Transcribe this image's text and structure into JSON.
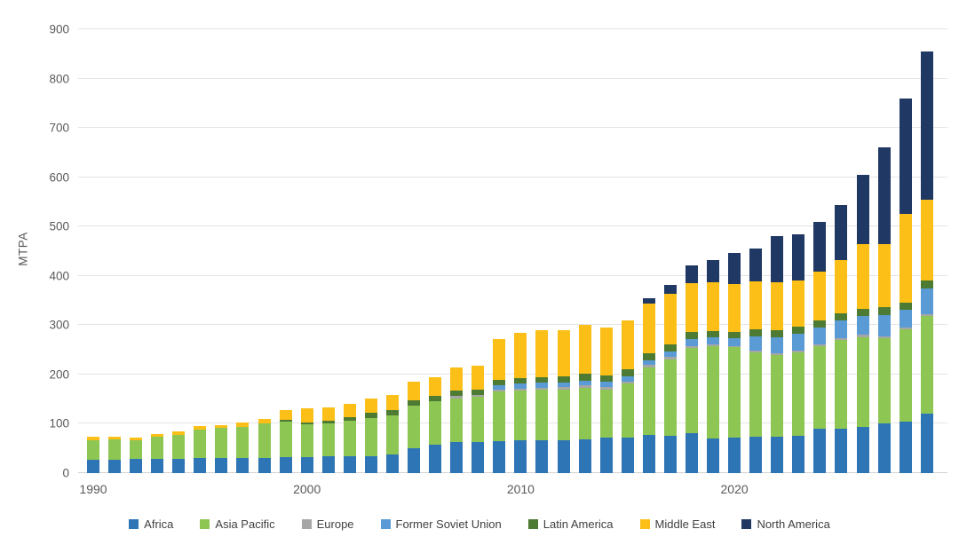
{
  "chart": {
    "background": "#ffffff",
    "grid_color": "#e4e4e4",
    "axis_line_color": "#d2d2d2",
    "tick_label_color": "#595959",
    "legend_text_color": "#404040"
  },
  "chart_data": {
    "type": "bar",
    "stacked": true,
    "title": "",
    "xlabel": "",
    "ylabel": "MTPA",
    "ylim": [
      0,
      900
    ],
    "y_ticks": [
      0,
      100,
      200,
      300,
      400,
      500,
      600,
      700,
      800,
      900
    ],
    "grid": true,
    "legend_position": "bottom",
    "x": [
      1990,
      1991,
      1992,
      1993,
      1994,
      1995,
      1996,
      1997,
      1998,
      1999,
      2000,
      2001,
      2002,
      2003,
      2004,
      2005,
      2006,
      2007,
      2008,
      2009,
      2010,
      2011,
      2012,
      2013,
      2014,
      2015,
      2016,
      2017,
      2018,
      2019,
      2020,
      2021,
      2022,
      2023,
      2024,
      2025,
      2026,
      2027,
      2028,
      2029
    ],
    "x_tick_labels": [
      "1990",
      "2000",
      "2010",
      "2020"
    ],
    "series": [
      {
        "name": "Africa",
        "color": "#2E75B6",
        "values": [
          27,
          27,
          28,
          29,
          29,
          30,
          31,
          31,
          31,
          33,
          33,
          34,
          35,
          35,
          38,
          51,
          57,
          63,
          63,
          64,
          66,
          67,
          67,
          68,
          72,
          72,
          77,
          75,
          81,
          70,
          72,
          73,
          73,
          76,
          90,
          90,
          94,
          100,
          105,
          120
        ]
      },
      {
        "name": "Asia Pacific",
        "color": "#8DC653",
        "values": [
          40,
          41,
          38,
          44,
          48,
          58,
          61,
          63,
          69,
          72,
          66,
          67,
          71,
          77,
          79,
          86,
          89,
          89,
          92,
          101,
          101,
          102,
          103,
          105,
          98,
          110,
          137,
          156,
          173,
          187,
          183,
          171,
          166,
          169,
          167,
          180,
          182,
          174,
          186,
          199
        ]
      },
      {
        "name": "Europe",
        "color": "#A6A6A6",
        "values": [
          0,
          0,
          0,
          0,
          0,
          0,
          0,
          0,
          0,
          0,
          0,
          0,
          0,
          0,
          0,
          0,
          0,
          4,
          4,
          4,
          4,
          4,
          4,
          5,
          4,
          4,
          5,
          5,
          4,
          4,
          3,
          4,
          4,
          4,
          4,
          4,
          4,
          4,
          4,
          3
        ]
      },
      {
        "name": "Former Soviet Union",
        "color": "#5B9BD5",
        "values": [
          0,
          0,
          0,
          0,
          0,
          0,
          0,
          0,
          0,
          0,
          0,
          0,
          0,
          0,
          0,
          0,
          0,
          0,
          0,
          9,
          10,
          10,
          10,
          10,
          11,
          10,
          9,
          11,
          14,
          14,
          15,
          30,
          32,
          33,
          34,
          35,
          38,
          42,
          36,
          52
        ]
      },
      {
        "name": "Latin America",
        "color": "#4E7B33",
        "values": [
          0,
          0,
          0,
          0,
          0,
          0,
          0,
          0,
          0,
          3,
          4,
          5,
          7,
          10,
          10,
          10,
          11,
          11,
          11,
          11,
          12,
          12,
          12,
          13,
          13,
          14,
          15,
          14,
          14,
          13,
          13,
          14,
          14,
          15,
          15,
          15,
          15,
          16,
          15,
          16
        ]
      },
      {
        "name": "Middle East",
        "color": "#FBBF17",
        "values": [
          6,
          6,
          6,
          6,
          7,
          7,
          6,
          8,
          9,
          19,
          29,
          28,
          27,
          29,
          32,
          39,
          38,
          47,
          48,
          83,
          92,
          94,
          94,
          99,
          98,
          100,
          101,
          102,
          99,
          99,
          97,
          96,
          98,
          94,
          98,
          108,
          132,
          129,
          180,
          164
        ]
      },
      {
        "name": "North America",
        "color": "#1F3864",
        "values": [
          0,
          0,
          0,
          0,
          0,
          0,
          0,
          0,
          0,
          0,
          0,
          0,
          0,
          0,
          0,
          0,
          0,
          0,
          0,
          0,
          0,
          0,
          0,
          0,
          0,
          0,
          10,
          19,
          36,
          45,
          64,
          67,
          93,
          93,
          102,
          111,
          139,
          195,
          234,
          302
        ]
      }
    ]
  }
}
